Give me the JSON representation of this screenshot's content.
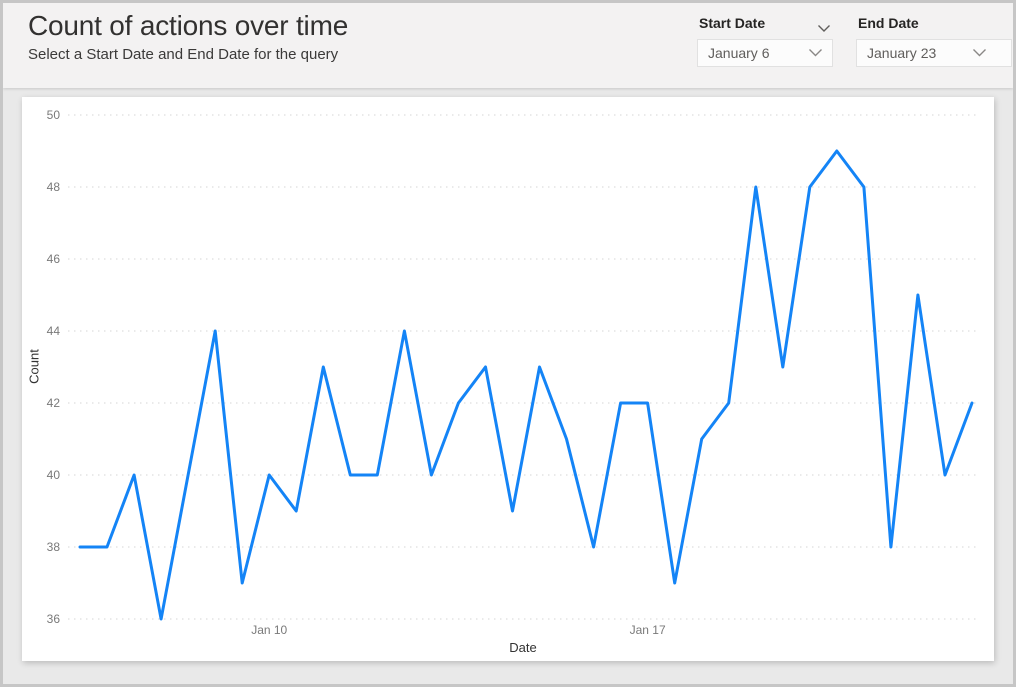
{
  "header": {
    "title": "Count of actions over time",
    "subtitle": "Select a Start Date and End Date for the query"
  },
  "slicers": {
    "start": {
      "label": "Start Date",
      "value": "January 6"
    },
    "end": {
      "label": "End Date",
      "value": "January 23"
    }
  },
  "chart_data": {
    "type": "line",
    "title": "",
    "xlabel": "Date",
    "ylabel": "Count",
    "ylim": [
      36,
      50
    ],
    "y_ticks": [
      36,
      38,
      40,
      42,
      44,
      46,
      48,
      50
    ],
    "x_ticks": [
      {
        "label": "Jan 10",
        "index": 7
      },
      {
        "label": "Jan 17",
        "index": 21
      }
    ],
    "x_range_description": "34 points at half-day intervals from Jan 6 (midday) through Jan 23",
    "values": [
      38,
      38,
      40,
      36,
      40,
      44,
      37,
      40,
      39,
      43,
      40,
      40,
      44,
      40,
      42,
      43,
      39,
      43,
      41,
      38,
      42,
      42,
      37,
      41,
      42,
      48,
      43,
      48,
      49,
      48,
      38,
      45,
      40,
      42
    ],
    "line_color": "#1484F6",
    "grid": "horizontal-dotted",
    "gridline_color": "#dedede",
    "tick_label_color": "#797979",
    "legend": "none"
  }
}
